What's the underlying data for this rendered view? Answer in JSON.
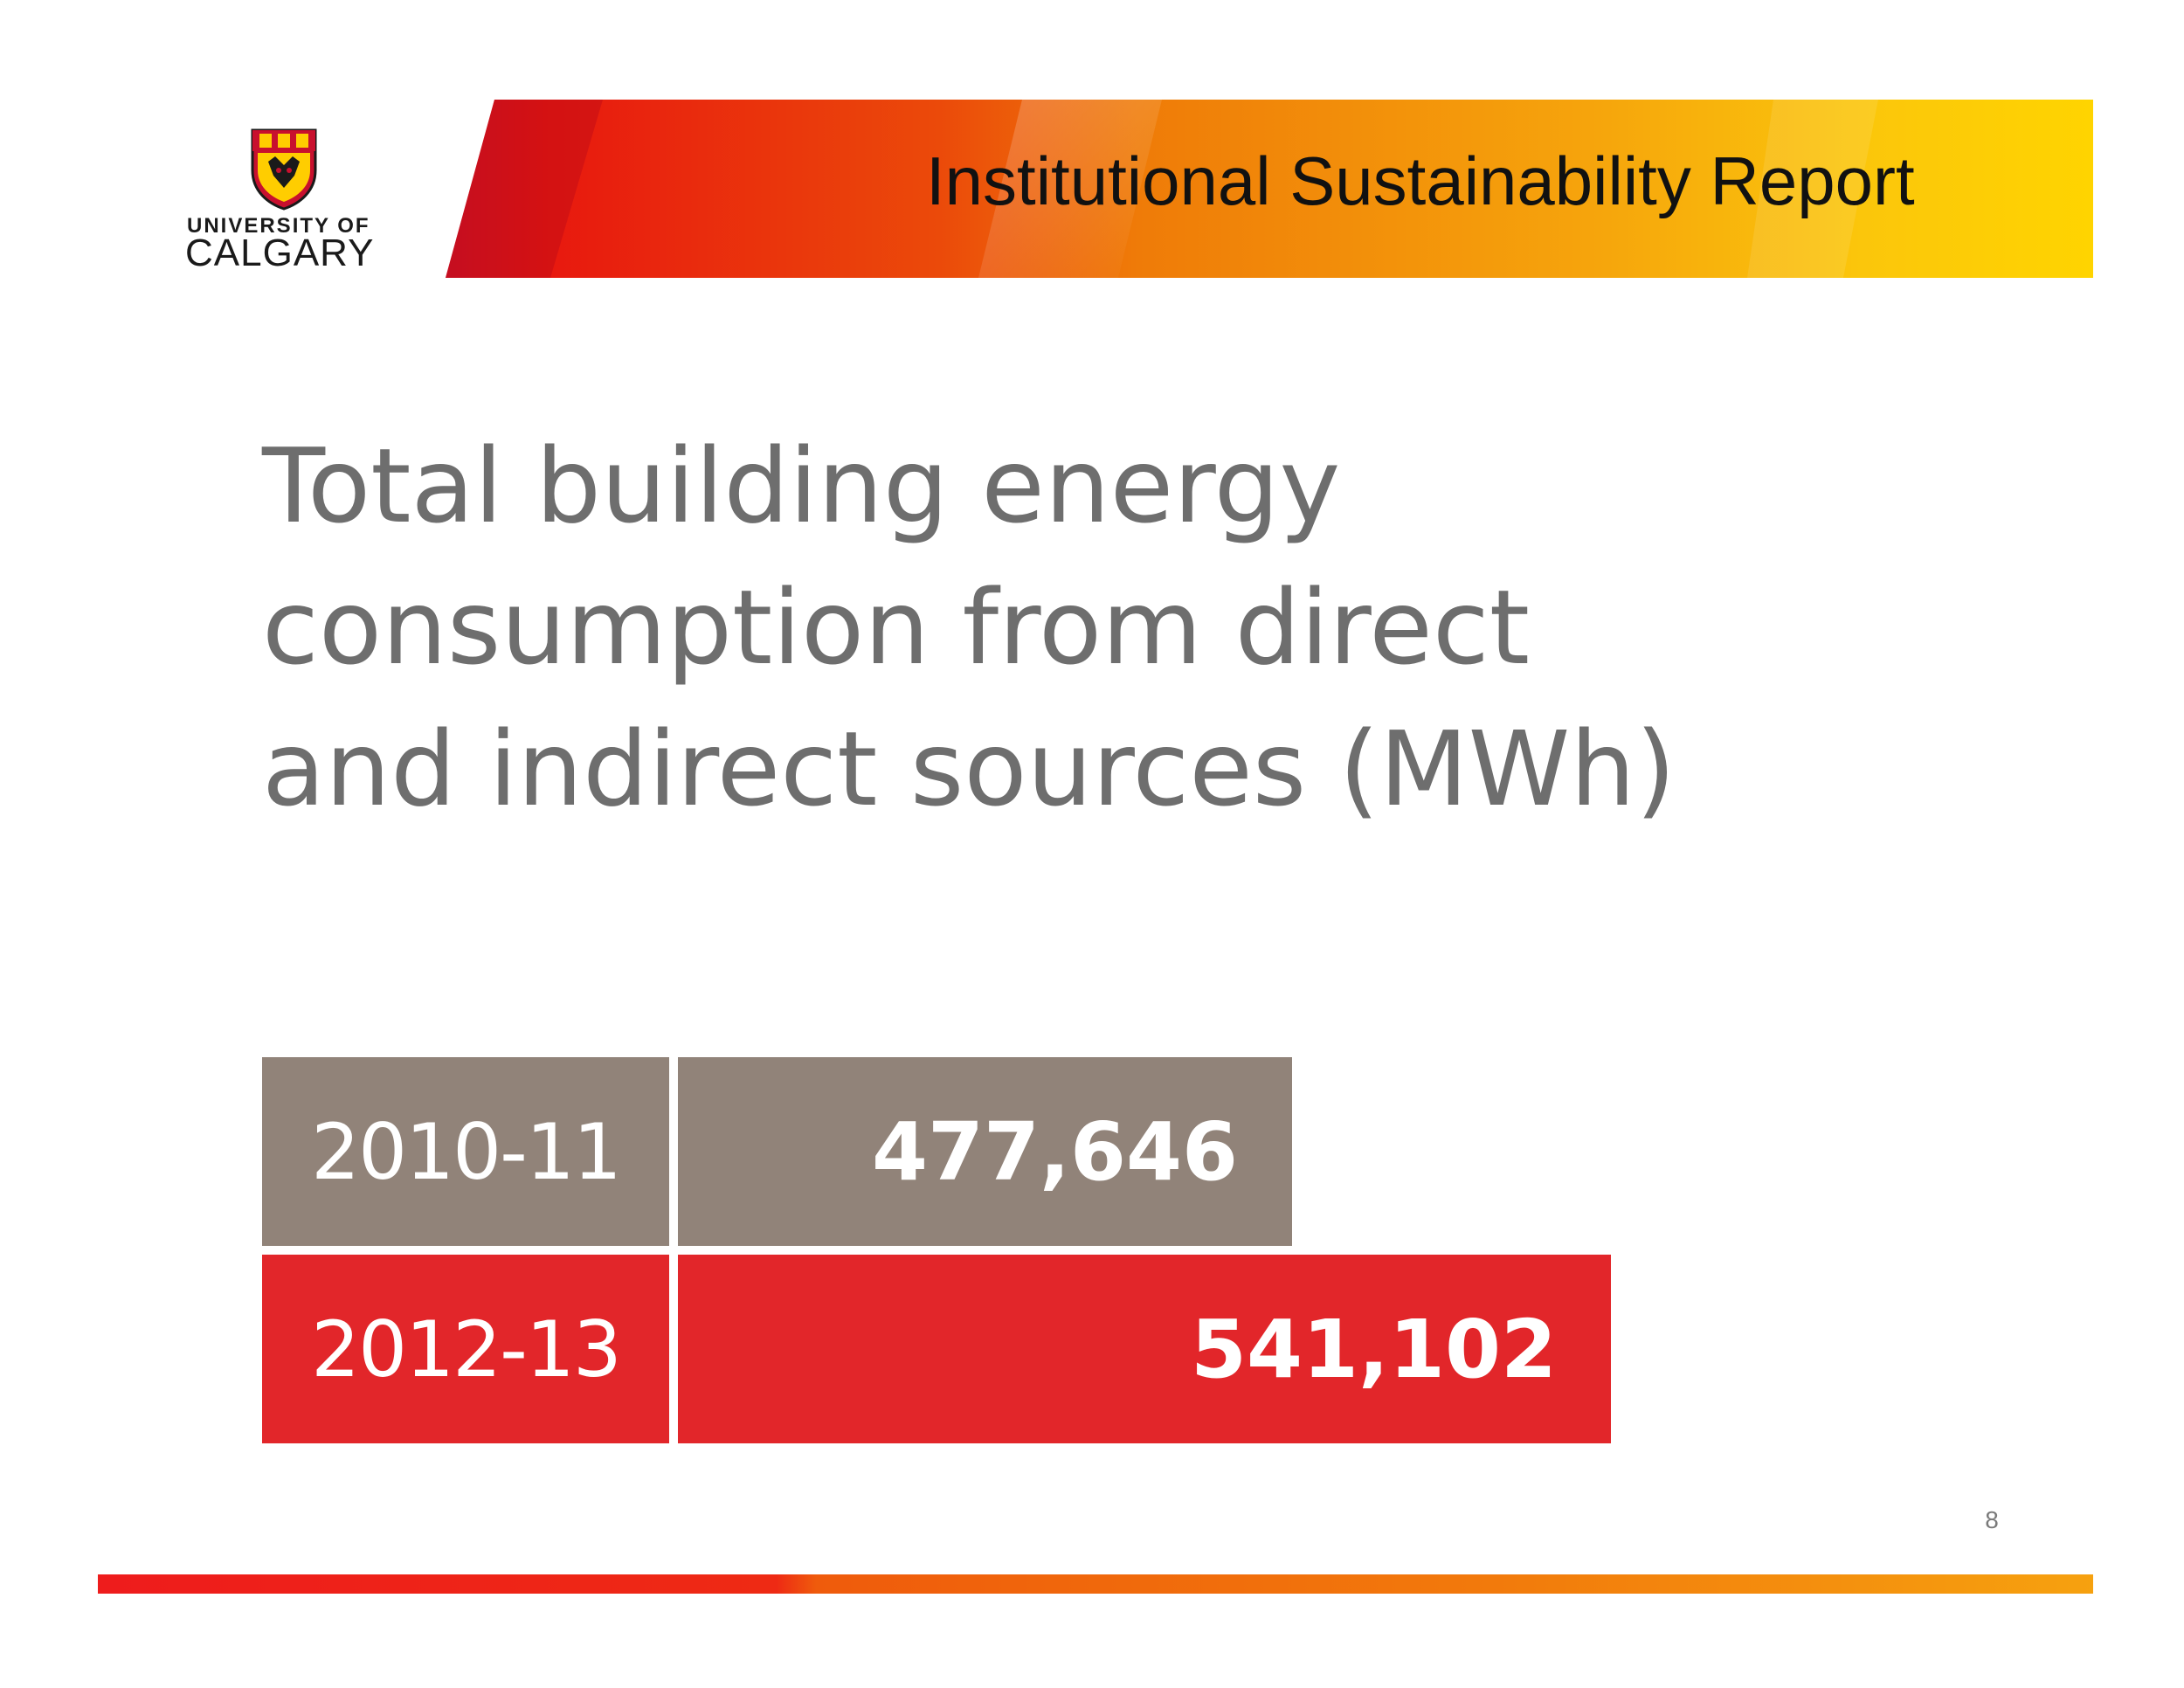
{
  "header": {
    "title": "Institutional Sustainability Report"
  },
  "logo": {
    "line1": "UNIVERSITY OF",
    "line2": "CALGARY"
  },
  "page_number": "8",
  "colors": {
    "bar_2010_11": "#918379",
    "bar_2012_13": "#e2262a",
    "title_gray": "#6e6e6e"
  },
  "chart_data": {
    "type": "bar",
    "orientation": "horizontal",
    "title": "Total building energy consumption from direct and indirect sources (MWh)",
    "categories": [
      "2010-11",
      "2012-13"
    ],
    "values": [
      477646,
      541102
    ],
    "value_labels": [
      "477,646",
      "541,102"
    ],
    "xlabel": "",
    "ylabel": "",
    "grid": false
  }
}
